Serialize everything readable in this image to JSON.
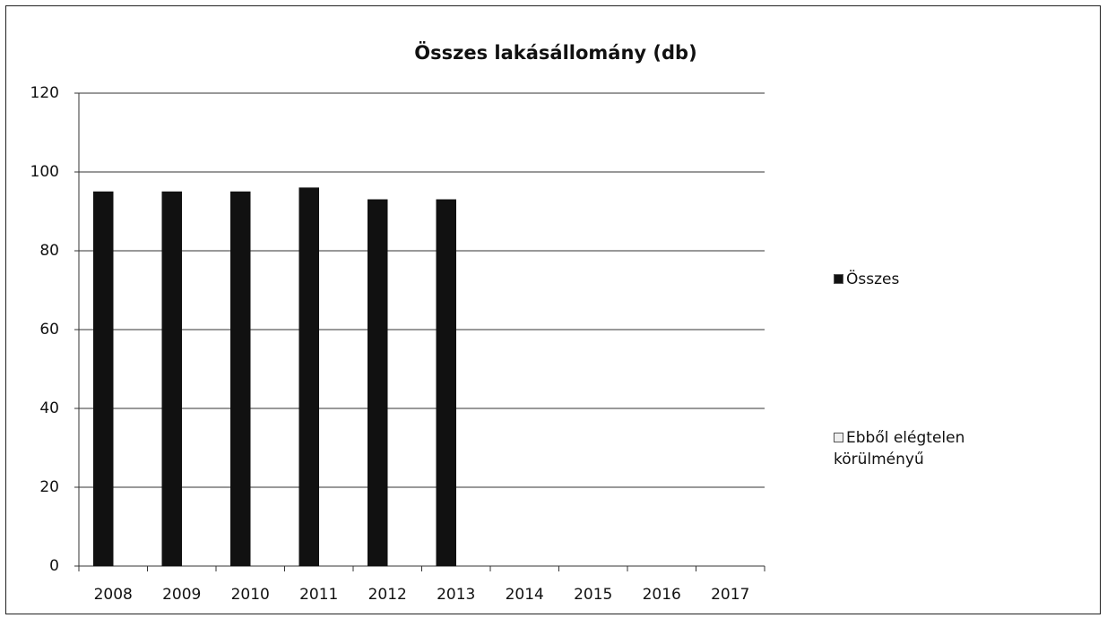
{
  "chart_data": {
    "type": "bar",
    "title": "Összes lakásállomány (db)",
    "categories": [
      "2008",
      "2009",
      "2010",
      "2011",
      "2012",
      "2013",
      "2014",
      "2015",
      "2016",
      "2017"
    ],
    "series": [
      {
        "name": "Összes",
        "color": "#111111",
        "values": [
          95,
          95,
          95,
          96,
          93,
          93,
          null,
          null,
          null,
          null
        ]
      },
      {
        "name": "Ebből elégtelen körülményű",
        "color": "#eeeeee",
        "values": [
          0,
          0,
          0,
          0,
          0,
          0,
          null,
          null,
          null,
          null
        ]
      }
    ],
    "ylim": [
      0,
      120
    ],
    "yticks": [
      0,
      20,
      40,
      60,
      80,
      100,
      120
    ],
    "grid": true,
    "legend": "right"
  }
}
